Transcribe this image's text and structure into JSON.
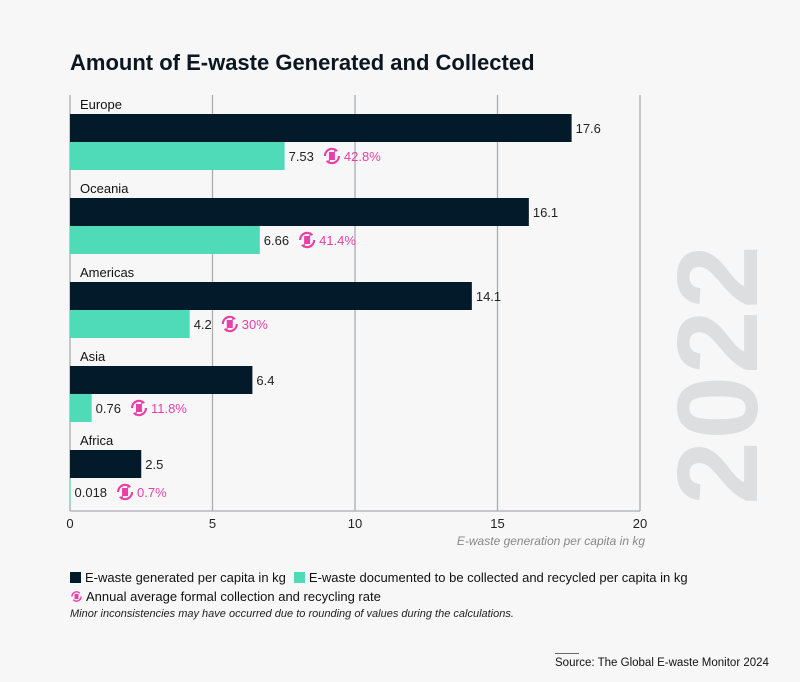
{
  "chart_data": {
    "type": "bar",
    "orientation": "horizontal",
    "title": "Amount of E-waste Generated and Collected",
    "watermark": "2022",
    "xlabel": "E-waste generation per capita in kg",
    "xlim": [
      0,
      20
    ],
    "xticks": [
      0,
      5,
      10,
      15,
      20
    ],
    "grid": true,
    "categories": [
      "Europe",
      "Oceania",
      "Americas",
      "Asia",
      "Africa"
    ],
    "series": [
      {
        "name": "E-waste generated per capita in kg",
        "color": "#021a2a",
        "values": [
          17.6,
          16.1,
          14.1,
          6.4,
          2.5
        ],
        "labels": [
          "17.6",
          "16.1",
          "14.1",
          "6.4",
          "2.5"
        ]
      },
      {
        "name": "E-waste documented to be collected and recycled per capita in kg",
        "color": "#4fdbb8",
        "values": [
          7.53,
          6.66,
          4.2,
          0.76,
          0.018
        ],
        "labels": [
          "7.53",
          "6.66",
          "4.2",
          "0.76",
          "0.018"
        ]
      }
    ],
    "rates": {
      "name": "Annual average formal collection and recycling rate",
      "color": "#e83fa8",
      "icon": "recycle-icon",
      "labels": [
        "42.8%",
        "41.4%",
        "30%",
        "11.8%",
        "0.7%"
      ]
    },
    "legend_placement": "bottom"
  },
  "footnote": "Minor inconsistencies may have occurred due to rounding of values during the calculations.",
  "source": "Source: The Global E-waste Monitor 2024"
}
